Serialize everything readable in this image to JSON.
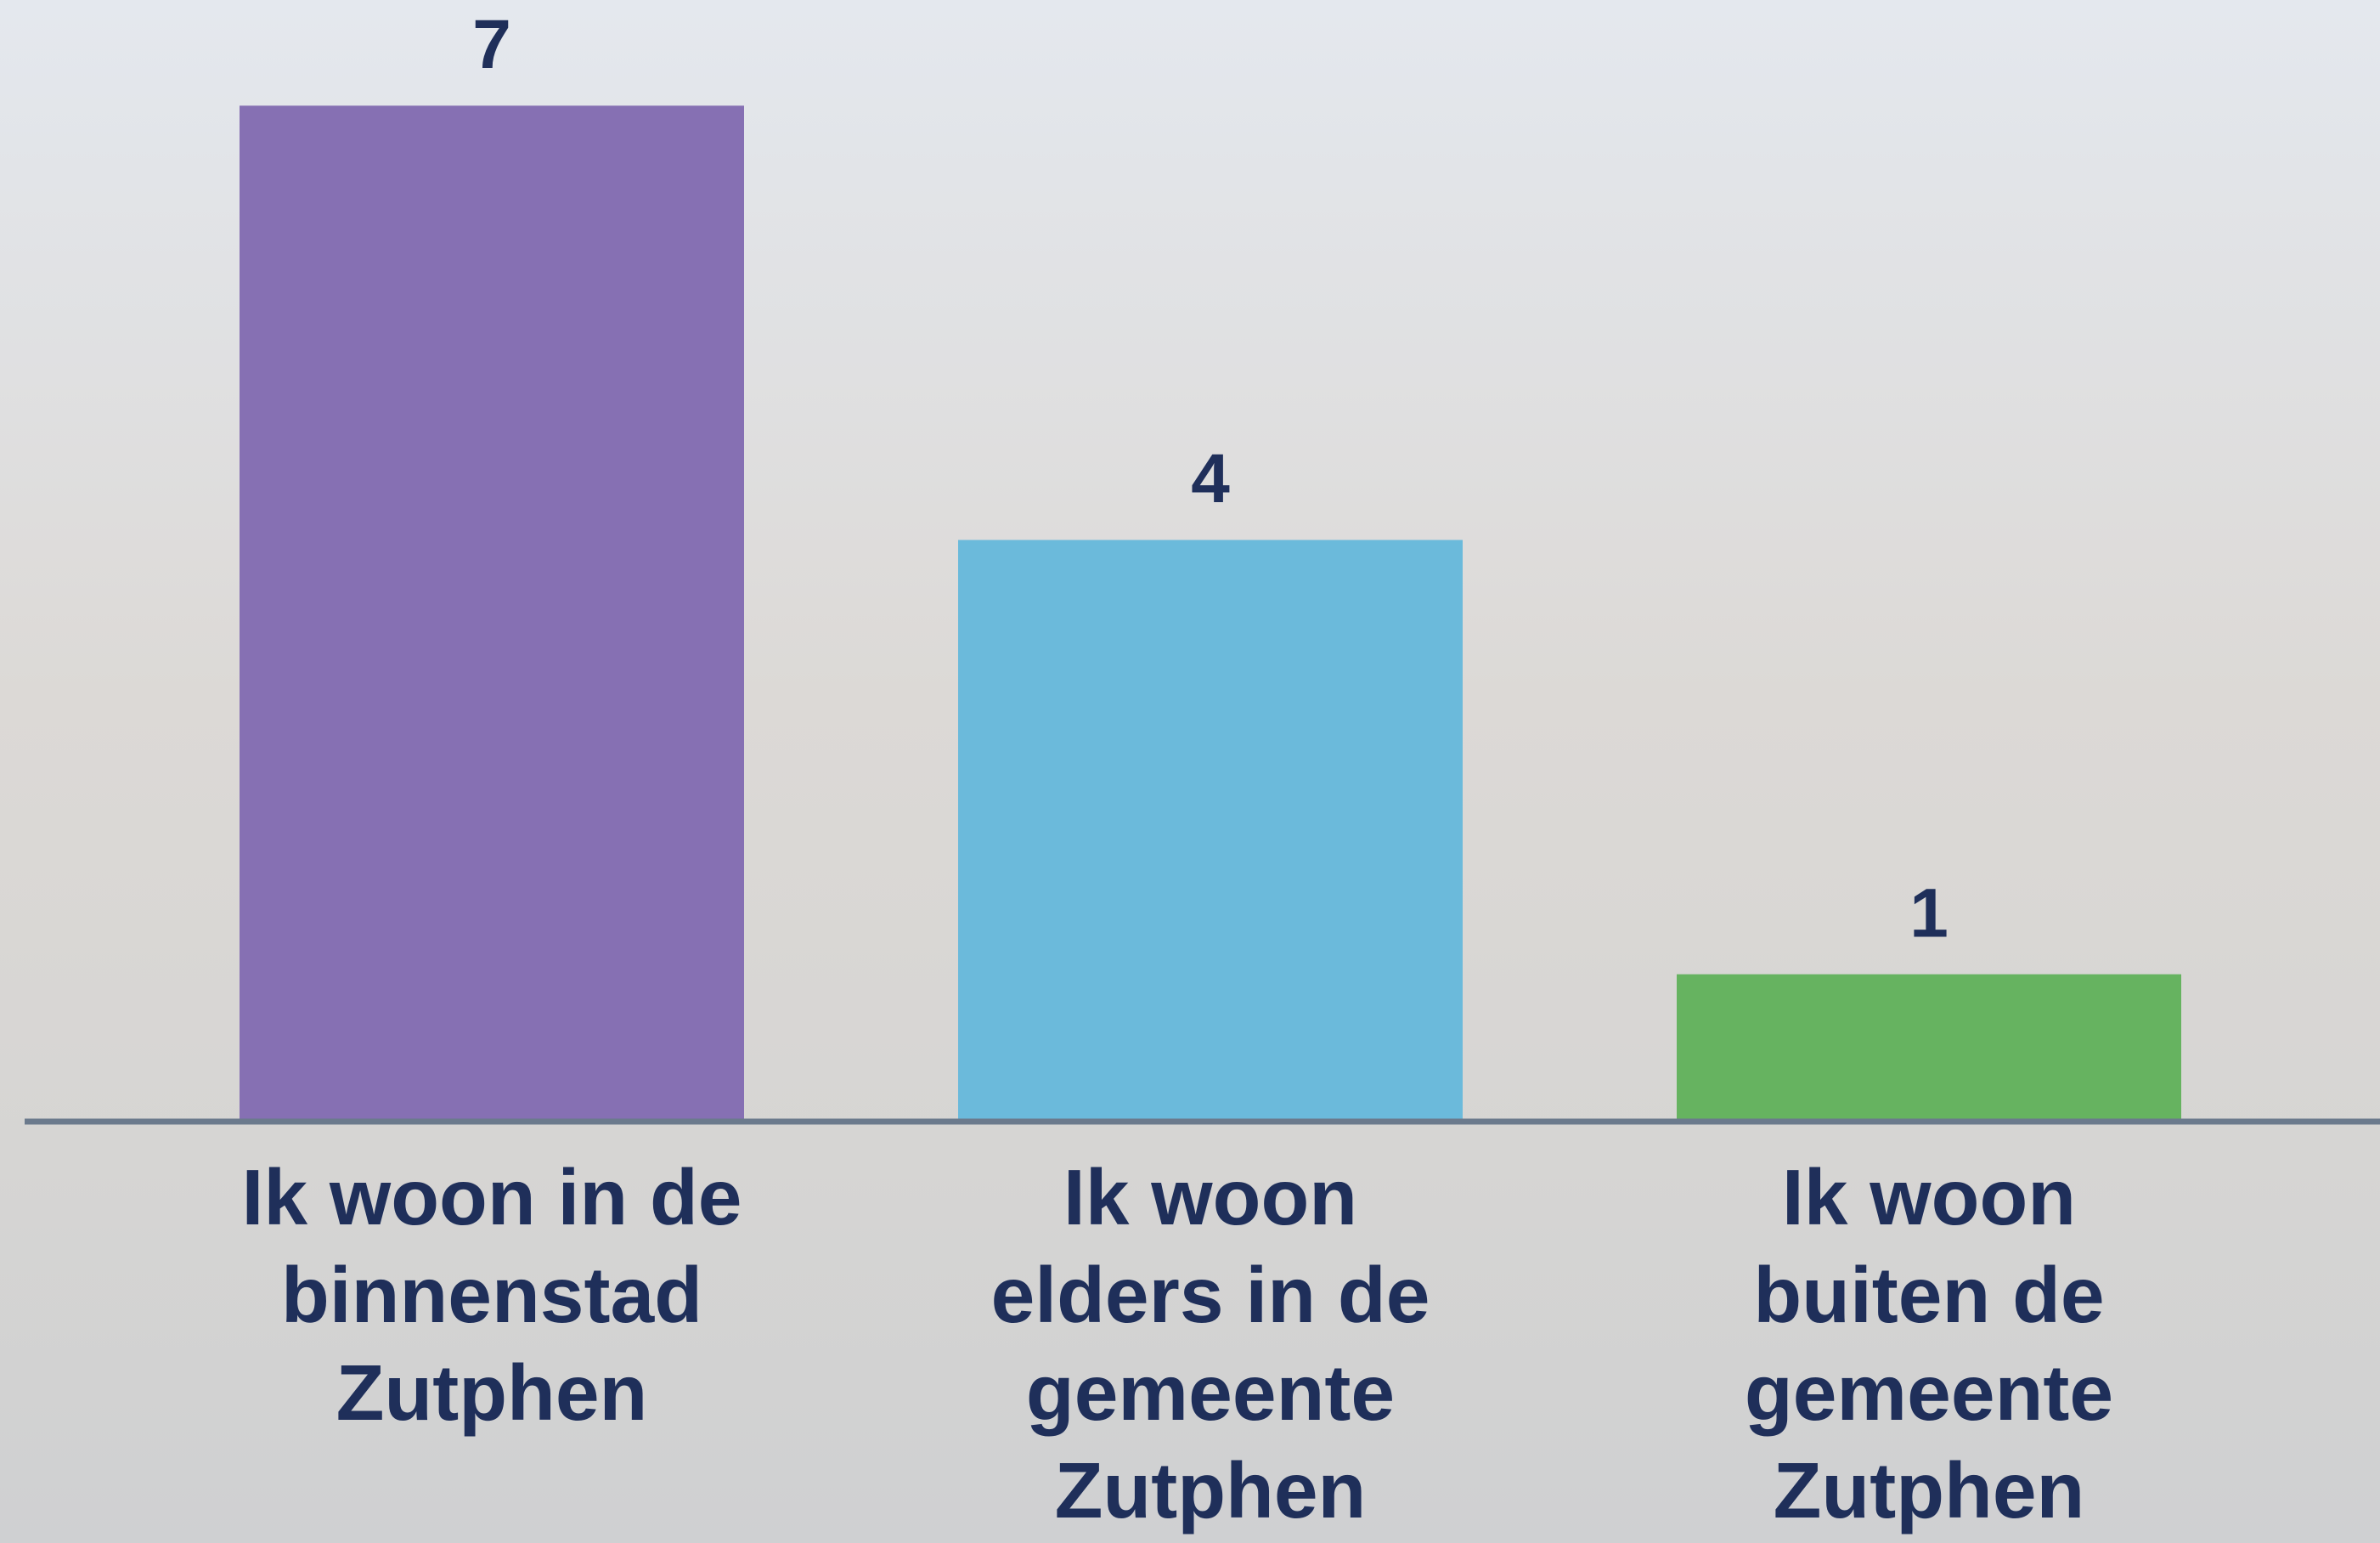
{
  "chart_data": {
    "type": "bar",
    "categories": [
      "Ik woon in de binnenstad Zutphen",
      "Ik woon elders in de gemeente Zutphen",
      "Ik woon buiten de gemeente Zutphen"
    ],
    "values": [
      7,
      4,
      1
    ],
    "colors": [
      "#8670b3",
      "#6bbadb",
      "#66b360"
    ],
    "ylim": [
      0,
      7.73
    ]
  }
}
